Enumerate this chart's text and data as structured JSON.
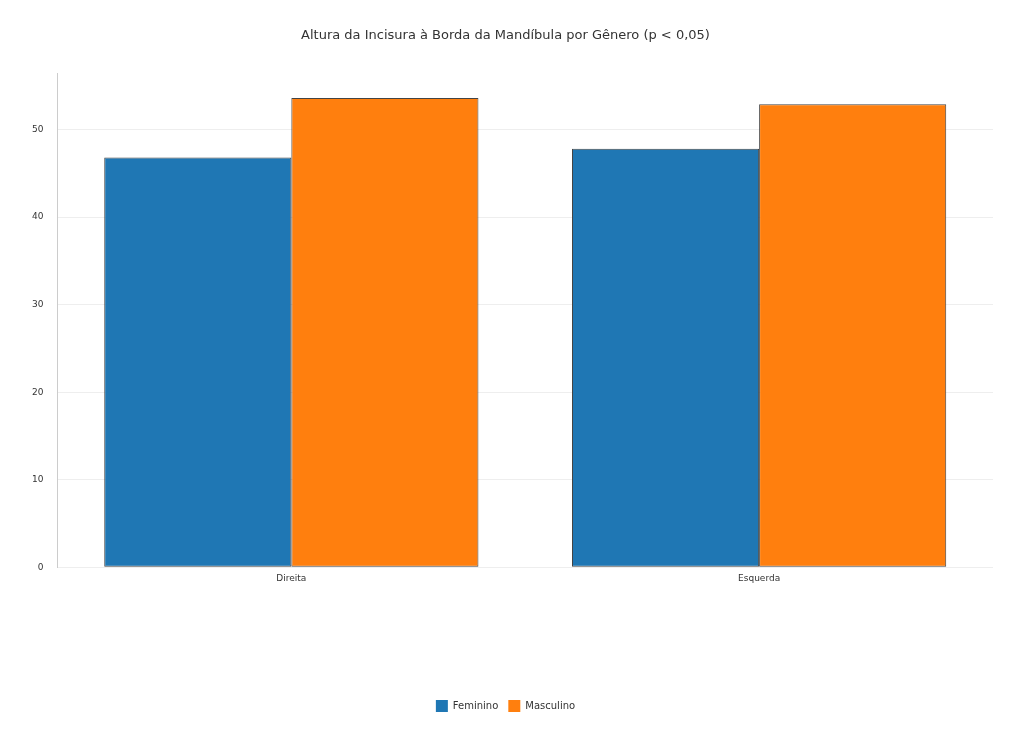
{
  "chart_data": {
    "type": "bar",
    "title": "Altura da Incisura à Borda da Mandíbula por Gênero (p < 0,05)",
    "categories": [
      "Direita",
      "Esquerda"
    ],
    "series": [
      {
        "name": "Feminino",
        "color": "#1f77b4",
        "values": [
          46.8,
          47.8
        ]
      },
      {
        "name": "Masculino",
        "color": "#ff7f0e",
        "values": [
          53.6,
          52.9
        ]
      }
    ],
    "ylim": [
      0,
      56.4
    ],
    "yticks": [
      0,
      10,
      20,
      30,
      40,
      50
    ],
    "grid": "y",
    "legend": "bottom"
  }
}
